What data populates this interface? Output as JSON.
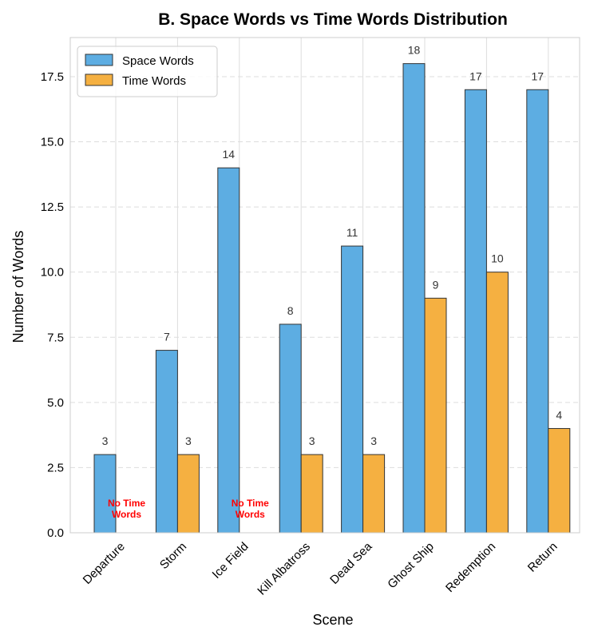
{
  "chart_data": {
    "type": "bar",
    "title": "B. Space Words vs Time Words Distribution",
    "xlabel": "Scene",
    "ylabel": "Number of Words",
    "categories": [
      "Departure",
      "Storm",
      "Ice Field",
      "Kill Albatross",
      "Dead Sea",
      "Ghost Ship",
      "Redemption",
      "Return"
    ],
    "series": [
      {
        "name": "Space Words",
        "values": [
          3,
          7,
          14,
          8,
          11,
          18,
          17,
          17
        ],
        "color": "#5dade2"
      },
      {
        "name": "Time Words",
        "values": [
          0,
          3,
          0,
          3,
          3,
          9,
          10,
          4
        ],
        "color": "#f5b041"
      }
    ],
    "ylim": [
      0,
      19
    ],
    "yticks": [
      "0.0",
      "2.5",
      "5.0",
      "7.5",
      "10.0",
      "12.5",
      "15.0",
      "17.5"
    ],
    "grid": true,
    "legend": "top-left",
    "annotations": [
      {
        "category": "Departure",
        "text": "No Time Words",
        "color": "#ff0000"
      },
      {
        "category": "Ice Field",
        "text": "No Time Words",
        "color": "#ff0000"
      }
    ],
    "bar_edge_color": "#333333",
    "grid_color": "#dddddd"
  }
}
